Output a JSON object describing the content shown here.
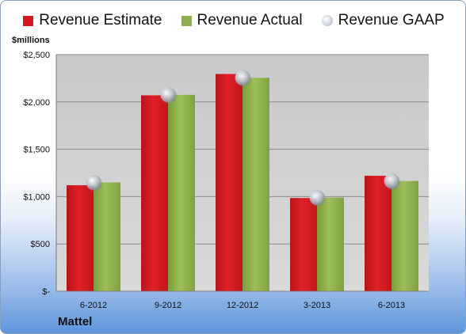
{
  "chart_data": {
    "type": "bar",
    "categories": [
      "6-2012",
      "9-2012",
      "12-2012",
      "3-2013",
      "6-2013"
    ],
    "series": [
      {
        "name": "Revenue Estimate",
        "kind": "bar",
        "color": "#d6181e",
        "values": [
          1120,
          2070,
          2295,
          985,
          1220
        ]
      },
      {
        "name": "Revenue Actual",
        "kind": "bar",
        "color": "#8db04a",
        "values": [
          1150,
          2075,
          2255,
          990,
          1165
        ]
      },
      {
        "name": "Revenue GAAP",
        "kind": "marker",
        "color": "#c8cfd8",
        "values": [
          1150,
          2075,
          2255,
          990,
          1165
        ]
      }
    ],
    "ylabel": "$millions",
    "ylim": [
      0,
      2500
    ],
    "yticks": [
      0,
      500,
      1000,
      1500,
      2000,
      2500
    ],
    "ytick_labels": [
      "$-",
      "$500",
      "$1,000",
      "$1,500",
      "$2,000",
      "$2,500"
    ],
    "grid": true,
    "legend_position": "top",
    "caption": "Mattel"
  }
}
